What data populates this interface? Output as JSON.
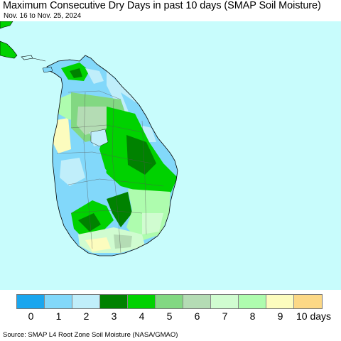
{
  "title": "Maximum Consecutive Dry Days in past 10 days (SMAP Soil Moisture)",
  "subtitle": "Nov. 16 to Nov. 25, 2024",
  "source": "Source: SMAP L4 Root Zone Soil Moisture (NASA/GMAO)",
  "map": {
    "ocean_color": "#c8fcfc",
    "land_outline_color": "#000000"
  },
  "legend": {
    "colors": [
      "#1aa6ee",
      "#82d8fa",
      "#c0eefa",
      "#008200",
      "#00d200",
      "#82d882",
      "#b4dcb4",
      "#d0fcd0",
      "#aefcae",
      "#fcfcbe",
      "#fcd886"
    ],
    "labels": [
      "0",
      "1",
      "2",
      "3",
      "4",
      "5",
      "6",
      "7",
      "8",
      "9",
      "10 days"
    ]
  }
}
